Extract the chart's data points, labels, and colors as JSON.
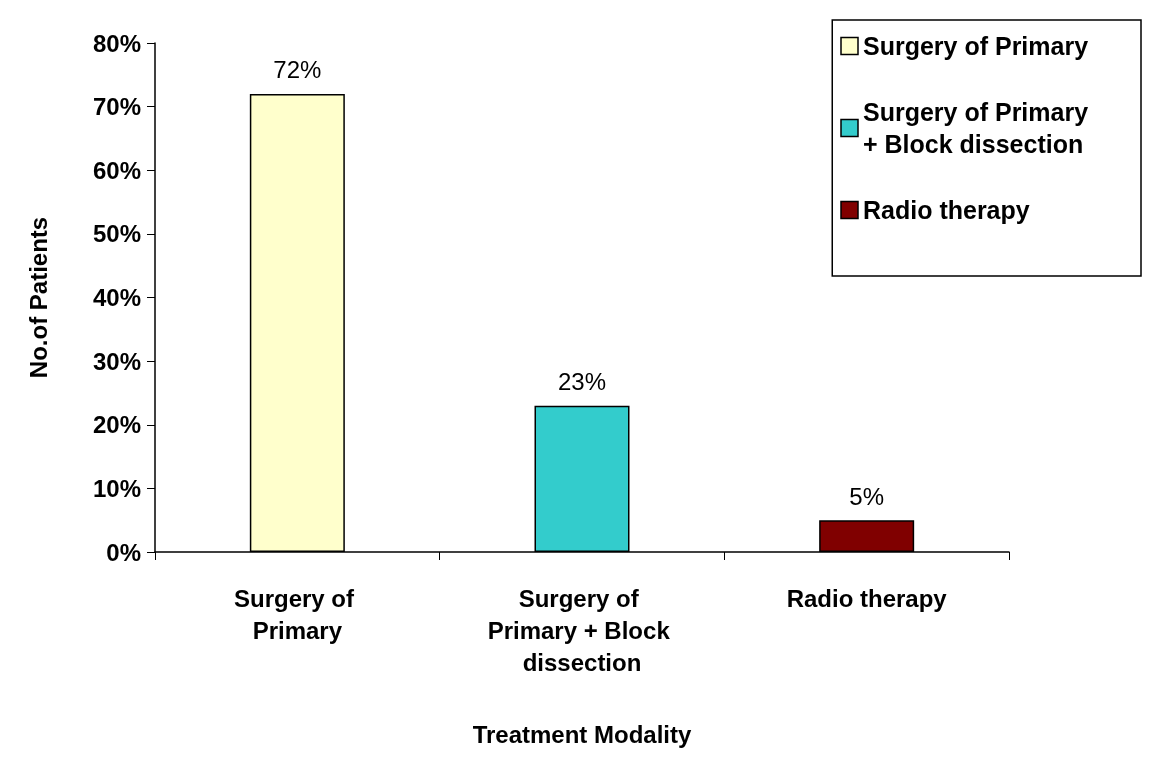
{
  "chart_data": {
    "type": "bar",
    "xlabel": "Treatment Modality",
    "ylabel": "No.of Patients",
    "categories": [
      "Surgery of Primary",
      "Surgery of Primary + Block dissection",
      "Radio therapy"
    ],
    "series": [
      {
        "name": "Surgery of Primary",
        "color": "#ffffcc",
        "values": [
          72,
          null,
          null
        ],
        "value_labels": [
          "72%",
          null,
          null
        ]
      },
      {
        "name": "Surgery of Primary + Block dissection",
        "color": "#33cccc",
        "values": [
          null,
          23,
          null
        ],
        "value_labels": [
          null,
          "23%",
          null
        ]
      },
      {
        "name": "Radio therapy",
        "color": "#800000",
        "values": [
          null,
          null,
          5
        ],
        "value_labels": [
          null,
          null,
          "5%"
        ]
      }
    ],
    "stacked": true,
    "ylim": [
      0,
      80
    ],
    "yticks": [
      {
        "value": 0,
        "label": "0%"
      },
      {
        "value": 10,
        "label": "10%"
      },
      {
        "value": 20,
        "label": "20%"
      },
      {
        "value": 30,
        "label": "30%"
      },
      {
        "value": 40,
        "label": "40%"
      },
      {
        "value": 50,
        "label": "50%"
      },
      {
        "value": 60,
        "label": "60%"
      },
      {
        "value": 70,
        "label": "70%"
      },
      {
        "value": 80,
        "label": "80%"
      }
    ],
    "legend": "top right"
  }
}
